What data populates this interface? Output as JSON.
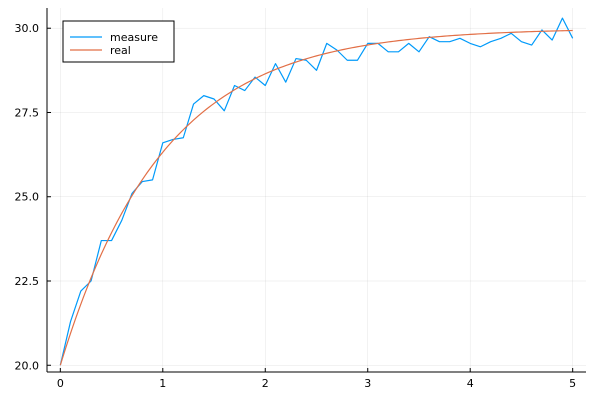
{
  "chart_data": {
    "type": "line",
    "title": "",
    "xlabel": "",
    "ylabel": "",
    "xlim": [
      -0.13,
      5.13
    ],
    "ylim": [
      19.8,
      30.6
    ],
    "xticks": [
      0,
      1,
      2,
      3,
      4,
      5
    ],
    "yticks": [
      20.0,
      22.5,
      25.0,
      27.5,
      30.0
    ],
    "xtick_labels": [
      "0",
      "1",
      "2",
      "3",
      "4",
      "5"
    ],
    "ytick_labels": [
      "20.0",
      "22.5",
      "25.0",
      "27.5",
      "30.0"
    ],
    "grid": true,
    "legend_position": "top-left",
    "series": [
      {
        "name": "measure",
        "color": "#009AFA",
        "x": [
          0,
          0.1,
          0.2,
          0.3,
          0.4,
          0.5,
          0.6,
          0.7,
          0.8,
          0.9,
          1.0,
          1.1,
          1.2,
          1.3,
          1.4,
          1.5,
          1.6,
          1.7,
          1.8,
          1.9,
          2.0,
          2.1,
          2.2,
          2.3,
          2.4,
          2.5,
          2.6,
          2.7,
          2.8,
          2.9,
          3.0,
          3.1,
          3.2,
          3.3,
          3.4,
          3.5,
          3.6,
          3.7,
          3.8,
          3.9,
          4.0,
          4.1,
          4.2,
          4.3,
          4.4,
          4.5,
          4.6,
          4.7,
          4.8,
          4.9,
          5.0
        ],
        "y": [
          20.0,
          21.3,
          22.2,
          22.5,
          23.7,
          23.7,
          24.3,
          25.1,
          25.45,
          25.5,
          26.6,
          26.7,
          26.75,
          27.75,
          28.0,
          27.9,
          27.55,
          28.3,
          28.15,
          28.55,
          28.3,
          28.95,
          28.4,
          29.1,
          29.05,
          28.75,
          29.55,
          29.35,
          29.05,
          29.05,
          29.55,
          29.55,
          29.3,
          29.3,
          29.55,
          29.3,
          29.75,
          29.6,
          29.6,
          29.7,
          29.55,
          29.45,
          29.6,
          29.7,
          29.85,
          29.6,
          29.5,
          29.95,
          29.65,
          30.3,
          29.7
        ]
      },
      {
        "name": "real",
        "color": "#E26F46",
        "function": "30 - 10*exp(-x)",
        "x_range": [
          0,
          5
        ]
      }
    ]
  }
}
